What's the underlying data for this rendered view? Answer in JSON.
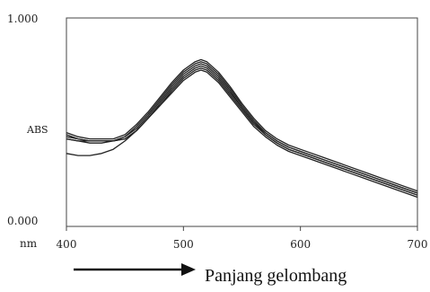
{
  "chart_data": {
    "type": "line",
    "title": "",
    "xlabel": "nm",
    "ylabel": "ABS",
    "xlim": [
      400,
      700
    ],
    "ylim": [
      0.0,
      1.0
    ],
    "x_ticks": [
      "400",
      "500",
      "600",
      "700"
    ],
    "y_tick_labels": {
      "top": "1.000",
      "bottom": "0.000"
    },
    "grid": false,
    "legend": "none",
    "line_color": "#222222",
    "caption": "Panjang gelombang",
    "x": [
      400,
      410,
      420,
      430,
      440,
      450,
      460,
      470,
      480,
      490,
      500,
      510,
      515,
      520,
      530,
      540,
      550,
      560,
      570,
      580,
      590,
      600,
      620,
      640,
      660,
      680,
      700
    ],
    "series": [
      {
        "values": [
          0.45,
          0.43,
          0.42,
          0.42,
          0.42,
          0.44,
          0.49,
          0.55,
          0.62,
          0.69,
          0.75,
          0.79,
          0.8,
          0.79,
          0.74,
          0.67,
          0.59,
          0.52,
          0.46,
          0.42,
          0.39,
          0.37,
          0.33,
          0.29,
          0.25,
          0.21,
          0.17
        ]
      },
      {
        "values": [
          0.44,
          0.42,
          0.41,
          0.41,
          0.41,
          0.43,
          0.48,
          0.54,
          0.61,
          0.68,
          0.74,
          0.78,
          0.79,
          0.78,
          0.73,
          0.66,
          0.58,
          0.51,
          0.45,
          0.41,
          0.38,
          0.36,
          0.32,
          0.28,
          0.24,
          0.2,
          0.16
        ]
      },
      {
        "values": [
          0.43,
          0.42,
          0.41,
          0.41,
          0.41,
          0.43,
          0.47,
          0.53,
          0.6,
          0.67,
          0.73,
          0.77,
          0.78,
          0.77,
          0.72,
          0.65,
          0.57,
          0.5,
          0.45,
          0.41,
          0.38,
          0.36,
          0.32,
          0.28,
          0.24,
          0.2,
          0.16
        ]
      },
      {
        "values": [
          0.42,
          0.41,
          0.41,
          0.41,
          0.41,
          0.42,
          0.46,
          0.52,
          0.59,
          0.66,
          0.72,
          0.76,
          0.77,
          0.76,
          0.71,
          0.64,
          0.57,
          0.5,
          0.44,
          0.4,
          0.37,
          0.35,
          0.31,
          0.27,
          0.23,
          0.19,
          0.15
        ]
      },
      {
        "values": [
          0.42,
          0.41,
          0.4,
          0.4,
          0.41,
          0.42,
          0.46,
          0.52,
          0.58,
          0.65,
          0.71,
          0.75,
          0.76,
          0.75,
          0.7,
          0.63,
          0.56,
          0.49,
          0.44,
          0.4,
          0.37,
          0.35,
          0.31,
          0.27,
          0.23,
          0.19,
          0.15
        ]
      },
      {
        "values": [
          0.35,
          0.34,
          0.34,
          0.35,
          0.37,
          0.41,
          0.46,
          0.52,
          0.58,
          0.64,
          0.7,
          0.74,
          0.75,
          0.74,
          0.69,
          0.62,
          0.55,
          0.48,
          0.43,
          0.39,
          0.36,
          0.34,
          0.3,
          0.26,
          0.22,
          0.18,
          0.14
        ]
      }
    ]
  }
}
